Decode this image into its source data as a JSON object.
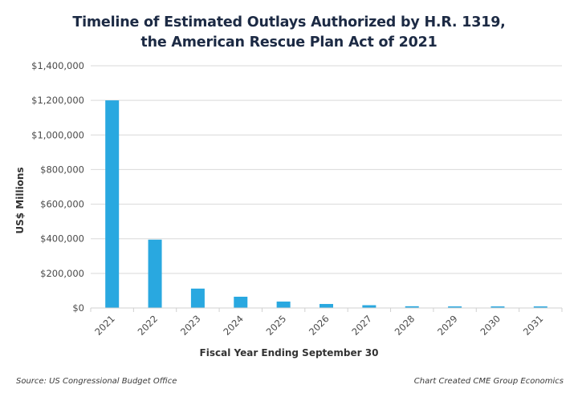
{
  "chart_data": {
    "type": "bar",
    "title_lines": [
      "Timeline of Estimated Outlays Authorized by H.R. 1319,",
      "the American Rescue Plan Act of 2021"
    ],
    "title": "Timeline of Estimated Outlays Authorized by H.R. 1319, the American Rescue Plan Act of 2021",
    "xlabel": "Fiscal Year Ending September 30",
    "ylabel": "US$ Millions",
    "categories": [
      "2021",
      "2022",
      "2023",
      "2024",
      "2025",
      "2026",
      "2027",
      "2028",
      "2029",
      "2030",
      "2031"
    ],
    "values": [
      1200000,
      395000,
      112000,
      65000,
      37000,
      23000,
      16000,
      10000,
      9000,
      9000,
      9000
    ],
    "ylim": [
      0,
      1400000
    ],
    "yticks": [
      0,
      200000,
      400000,
      600000,
      800000,
      1000000,
      1200000,
      1400000
    ],
    "ytick_labels": [
      "$0",
      "$200,000",
      "$400,000",
      "$600,000",
      "$800,000",
      "$1,000,000",
      "$1,200,000",
      "$1,400,000"
    ],
    "grid": true,
    "legend": "none",
    "bar_color": "#29a8e0"
  },
  "footer": {
    "source": "Source: US Congressional Budget Office",
    "credit": "Chart Created CME Group Economics"
  }
}
